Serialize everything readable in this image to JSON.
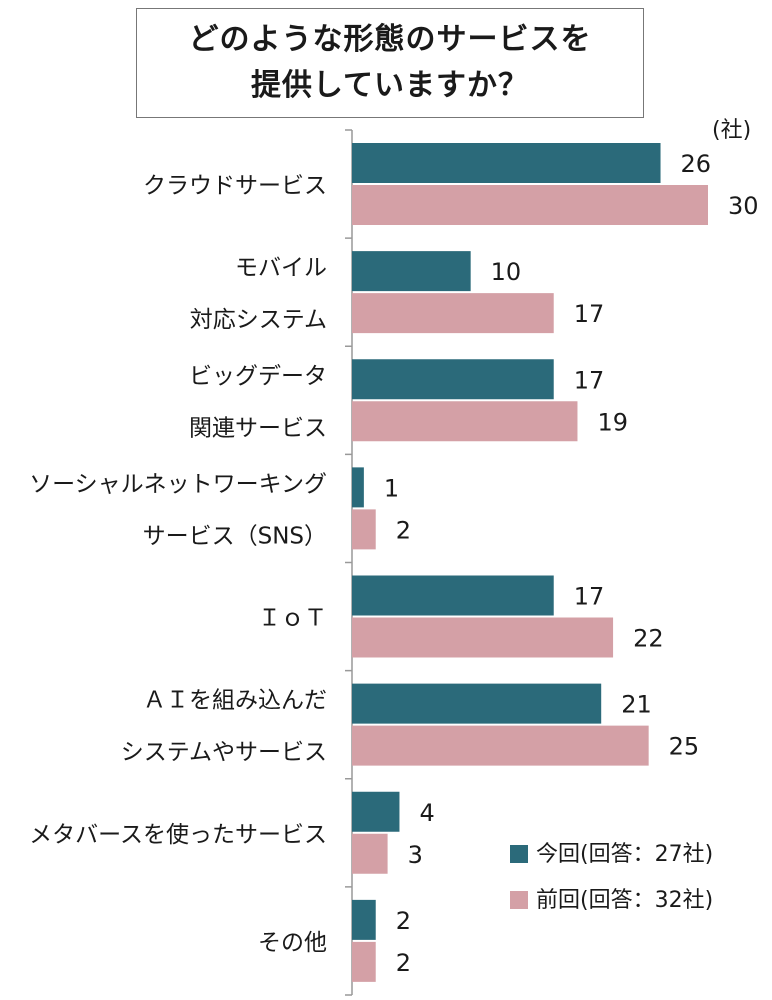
{
  "title_lines": [
    "どのような形態のサービスを",
    "提供していますか？"
  ],
  "unit": "(社)",
  "chart_data": {
    "type": "bar",
    "orientation": "horizontal",
    "categories": [
      [
        "クラウドサービス"
      ],
      [
        "モバイル",
        "対応システム"
      ],
      [
        "ビッグデータ",
        "関連サービス"
      ],
      [
        "ソーシャルネットワーキング",
        "サービス（SNS）"
      ],
      [
        "ＩｏＴ"
      ],
      [
        "ＡＩを組み込んだ",
        "システムやサービス"
      ],
      [
        "メタバースを使ったサービス"
      ],
      [
        "その他"
      ]
    ],
    "series": [
      {
        "name": "今回(回答：27社)",
        "color": "#2b6a7a",
        "values": [
          26,
          10,
          17,
          1,
          17,
          21,
          4,
          2
        ]
      },
      {
        "name": "前回(回答：32社)",
        "color": "#d4a0a6",
        "values": [
          30,
          17,
          19,
          2,
          22,
          25,
          3,
          2
        ]
      }
    ],
    "xlim": [
      0,
      30
    ],
    "grid": false,
    "legend_position": "bottom-right"
  }
}
